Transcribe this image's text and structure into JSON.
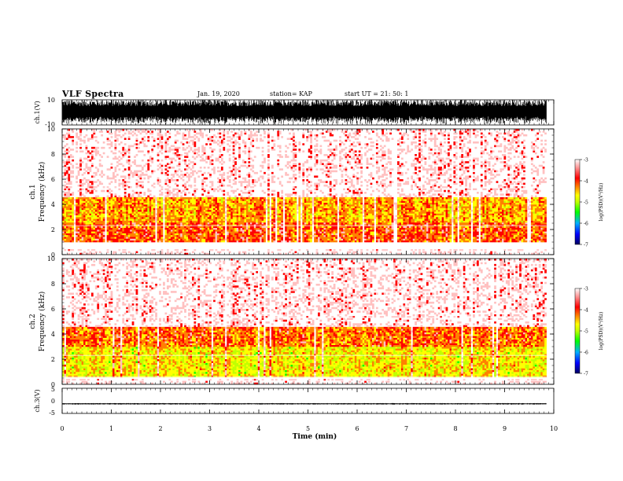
{
  "header": {
    "title": "VLF Spectra",
    "date": "Jan. 19, 2020",
    "station": "station= KAP",
    "start_ut": "start  UT =   21: 50: 1"
  },
  "colorbar": {
    "label": "log(PSD)(V²/Hz)",
    "ticks": [
      "-3",
      "-4",
      "-5",
      "-6",
      "-7"
    ],
    "range": [
      -7,
      -3
    ],
    "colors": [
      "#000080",
      "#0000ff",
      "#00c0ff",
      "#00ff00",
      "#c0ff00",
      "#ffff00",
      "#ff8000",
      "#ff0000",
      "#ffc0c0",
      "#ffffff"
    ]
  },
  "chart_data": [
    {
      "type": "line",
      "name": "ch1-waveform",
      "ylabel": "ch.1(V)",
      "ylim": [
        -10,
        10
      ],
      "yticks": [
        "10",
        "-10"
      ],
      "xlim": [
        0,
        10
      ],
      "series": [
        {
          "color": "#000000",
          "approx_range": [
            -10,
            10
          ]
        }
      ]
    },
    {
      "type": "heatmap",
      "name": "ch1-spectrogram",
      "ylabel": "ch.1",
      "ylabel2": "Frequency  (kHz)",
      "ylim": [
        0,
        10
      ],
      "yticks": [
        "0",
        "2",
        "4",
        "6",
        "8",
        "10"
      ],
      "xlim": [
        0,
        9.85
      ],
      "bands": [
        {
          "freq_kHz": [
            1.0,
            2.5
          ],
          "log_psd": -4.2,
          "description": "intense orange/yellow band"
        },
        {
          "freq_kHz": [
            2.5,
            4.5
          ],
          "log_psd": -4.5,
          "description": "mixed yellow and red"
        },
        {
          "freq_kHz": [
            4.5,
            10.0
          ],
          "log_psd": -3.4,
          "description": "red speckle"
        }
      ]
    },
    {
      "type": "heatmap",
      "name": "ch2-spectrogram",
      "ylabel": "ch.2",
      "ylabel2": "Frequency  (kHz)",
      "ylim": [
        0,
        10
      ],
      "yticks": [
        "0",
        "2",
        "4",
        "6",
        "8",
        "10"
      ],
      "xlim": [
        0,
        9.85
      ],
      "bands": [
        {
          "freq_kHz": [
            0.5,
            3.0
          ],
          "log_psd": -4.8,
          "description": "green/yellow band"
        },
        {
          "freq_kHz": [
            3.0,
            4.5
          ],
          "log_psd": -4.3,
          "description": "orange/yellow"
        },
        {
          "freq_kHz": [
            4.5,
            10.0
          ],
          "log_psd": -3.4,
          "description": "red speckle"
        }
      ]
    },
    {
      "type": "line",
      "name": "ch3-waveform",
      "ylabel": "ch.3(V)",
      "ylim": [
        -5,
        5
      ],
      "yticks": [
        "5",
        "0",
        "-5"
      ],
      "xlim": [
        0,
        10
      ],
      "series": [
        {
          "color": "#000000",
          "approx_range": [
            -1.5,
            -0.9
          ]
        }
      ]
    }
  ],
  "xaxis": {
    "label": "Time  (min)",
    "ticks": [
      "0",
      "1",
      "2",
      "3",
      "4",
      "5",
      "6",
      "7",
      "8",
      "9",
      "10"
    ],
    "range": [
      0,
      10
    ]
  }
}
